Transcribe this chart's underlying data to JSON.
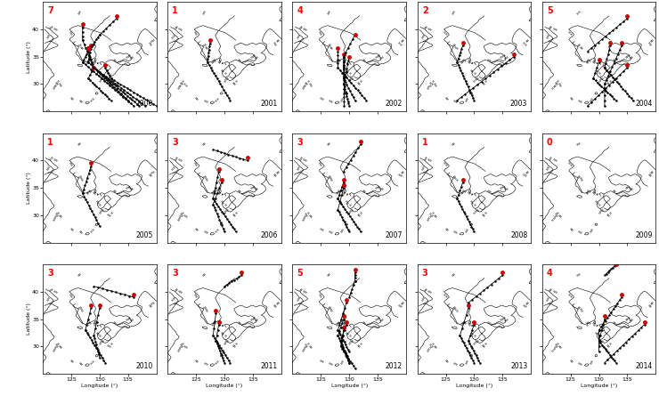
{
  "years": [
    2000,
    2001,
    2002,
    2003,
    2004,
    2005,
    2006,
    2007,
    2008,
    2009,
    2010,
    2011,
    2012,
    2013,
    2014
  ],
  "counts": [
    "7",
    "1",
    "4",
    "2",
    "5",
    "1",
    "3",
    "3",
    "1",
    "0",
    "3",
    "3",
    "5",
    "3",
    "4"
  ],
  "nrows": 3,
  "ncols": 5,
  "lon_min": 120,
  "lon_max": 140,
  "lat_min": 25,
  "lat_max": 45,
  "lon_ticks": [
    125,
    130,
    135
  ],
  "lat_ticks": [
    30,
    35,
    40
  ],
  "figsize": [
    7.4,
    4.54
  ],
  "dpi": 100
}
